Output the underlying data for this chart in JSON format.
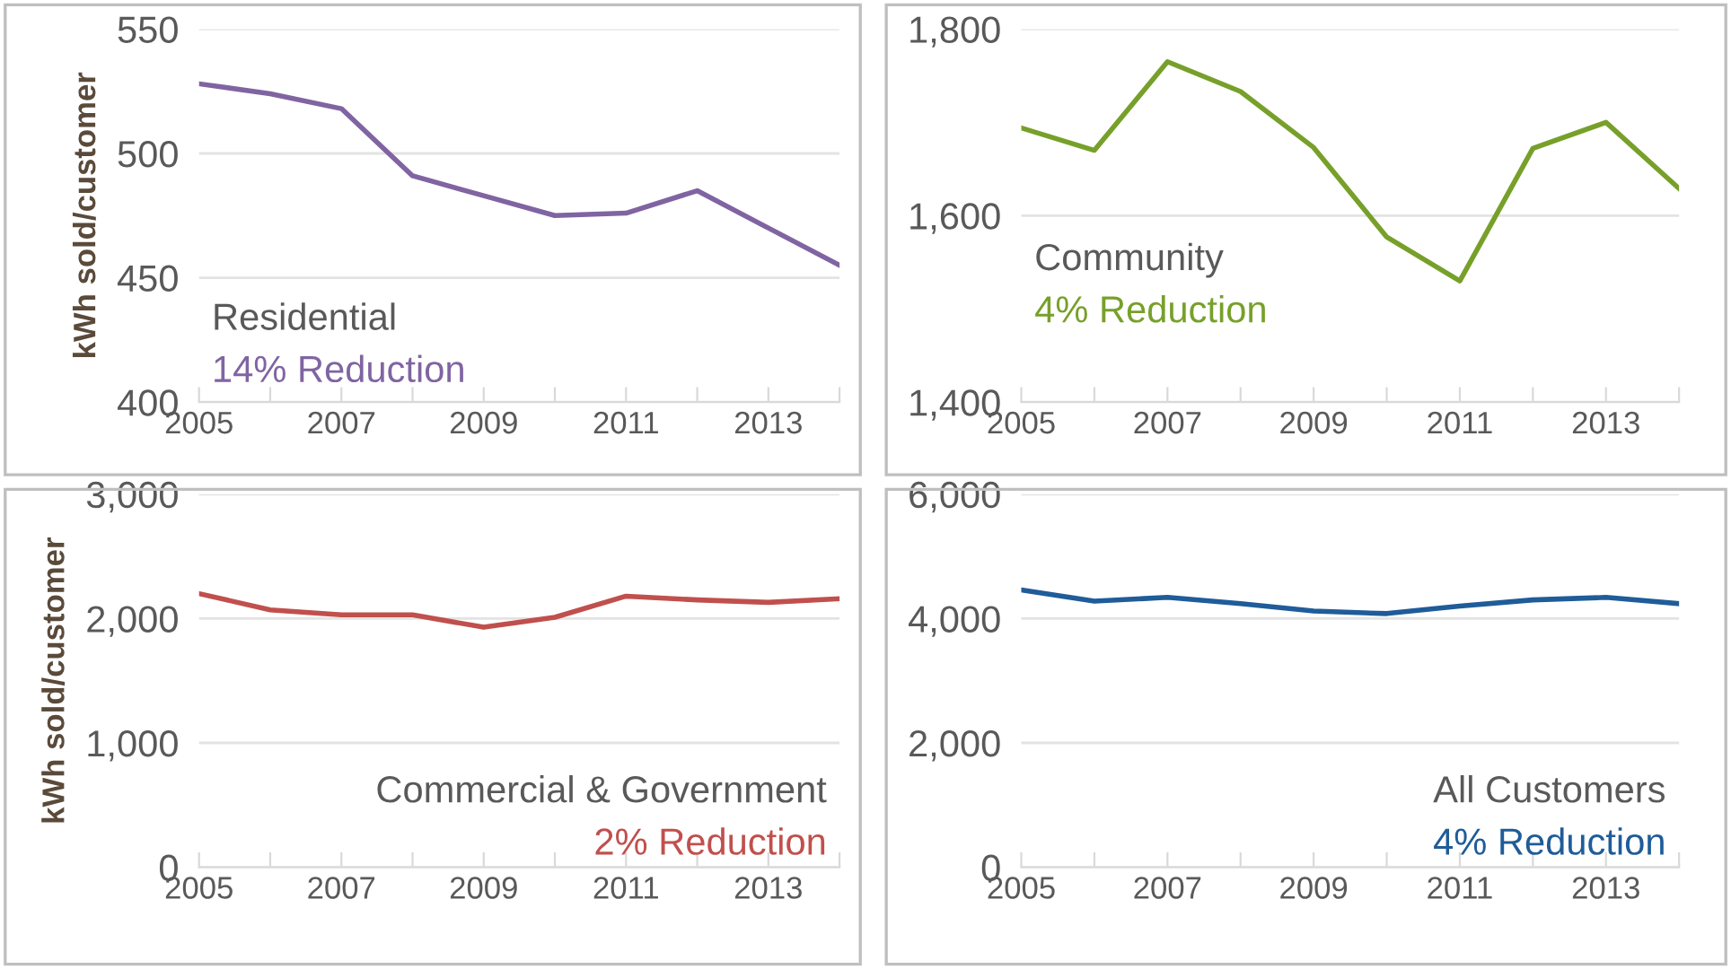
{
  "chart_data": [
    {
      "type": "line",
      "ylabel": "kWh sold/customer",
      "x": [
        2005,
        2006,
        2007,
        2008,
        2009,
        2010,
        2011,
        2012,
        2013,
        2014
      ],
      "series": [
        {
          "color": "#8064a2",
          "values": [
            528,
            524,
            518,
            491,
            483,
            475,
            476,
            485,
            470,
            455
          ]
        }
      ],
      "xlim": [
        2005,
        2014
      ],
      "xticks": [
        2005,
        {
          "value": 2006,
          "label": null
        },
        2007,
        {
          "value": 2008,
          "label": null
        },
        2009,
        {
          "value": 2010,
          "label": null
        },
        2011,
        {
          "value": 2012,
          "label": null
        },
        2013,
        {
          "value": 2014,
          "label": null
        }
      ],
      "ylim": [
        400,
        550
      ],
      "yticks": [
        400,
        450,
        500,
        550
      ],
      "grid": "y",
      "legend": false,
      "annotations": [
        "Residential",
        "14% Reduction"
      ]
    },
    {
      "type": "line",
      "x": [
        2005,
        2006,
        2007,
        2008,
        2009,
        2010,
        2011,
        2012,
        2013,
        2014
      ],
      "series": [
        {
          "color": "#77a02a",
          "values": [
            1694,
            1670,
            1765,
            1733,
            1673,
            1577,
            1530,
            1672,
            1700,
            1629
          ]
        }
      ],
      "xlim": [
        2005,
        2014
      ],
      "xticks": [
        2005,
        {
          "value": 2006,
          "label": null
        },
        2007,
        {
          "value": 2008,
          "label": null
        },
        2009,
        {
          "value": 2010,
          "label": null
        },
        2011,
        {
          "value": 2012,
          "label": null
        },
        2013,
        {
          "value": 2014,
          "label": null
        }
      ],
      "ylim": [
        1400,
        1800
      ],
      "yticks": [
        {
          "value": 1400,
          "label": "1,400"
        },
        {
          "value": 1600,
          "label": "1,600"
        },
        {
          "value": 1800,
          "label": "1,800"
        }
      ],
      "grid": "y",
      "legend": false,
      "annotations": [
        "Community",
        "4% Reduction"
      ]
    },
    {
      "type": "line",
      "ylabel": "kWh sold/customer",
      "x": [
        2005,
        2006,
        2007,
        2008,
        2009,
        2010,
        2011,
        2012,
        2013,
        2014
      ],
      "series": [
        {
          "color": "#c0504d",
          "values": [
            2200,
            2070,
            2030,
            2030,
            1930,
            2010,
            2180,
            2150,
            2130,
            2160
          ]
        }
      ],
      "xlim": [
        2005,
        2014
      ],
      "xticks": [
        2005,
        {
          "value": 2006,
          "label": null
        },
        2007,
        {
          "value": 2008,
          "label": null
        },
        2009,
        {
          "value": 2010,
          "label": null
        },
        2011,
        {
          "value": 2012,
          "label": null
        },
        2013,
        {
          "value": 2014,
          "label": null
        }
      ],
      "ylim": [
        0,
        3000
      ],
      "yticks": [
        0,
        {
          "value": 1000,
          "label": "1,000"
        },
        {
          "value": 2000,
          "label": "2,000"
        },
        {
          "value": 3000,
          "label": "3,000"
        }
      ],
      "grid": "y",
      "legend": false,
      "annotations": [
        "Commercial & Government",
        "2% Reduction"
      ]
    },
    {
      "type": "line",
      "x": [
        2005,
        2006,
        2007,
        2008,
        2009,
        2010,
        2011,
        2012,
        2013,
        2014
      ],
      "series": [
        {
          "color": "#1f5c99",
          "values": [
            4460,
            4280,
            4340,
            4240,
            4120,
            4080,
            4200,
            4300,
            4340,
            4240
          ]
        }
      ],
      "xlim": [
        2005,
        2014
      ],
      "xticks": [
        2005,
        {
          "value": 2006,
          "label": null
        },
        2007,
        {
          "value": 2008,
          "label": null
        },
        2009,
        {
          "value": 2010,
          "label": null
        },
        2011,
        {
          "value": 2012,
          "label": null
        },
        2013,
        {
          "value": 2014,
          "label": null
        }
      ],
      "ylim": [
        0,
        6000
      ],
      "yticks": [
        0,
        {
          "value": 2000,
          "label": "2,000"
        },
        {
          "value": 4000,
          "label": "4,000"
        },
        {
          "value": 6000,
          "label": "6,000"
        }
      ],
      "grid": "y",
      "legend": false,
      "annotations": [
        "All Customers",
        "4% Reduction"
      ]
    }
  ]
}
